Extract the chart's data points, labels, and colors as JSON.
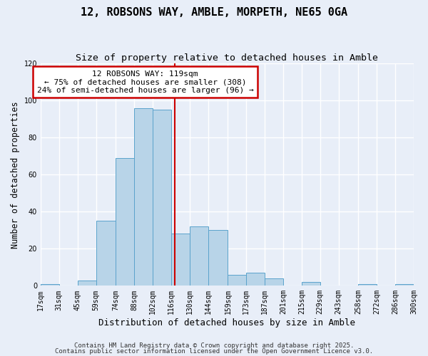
{
  "title": "12, ROBSONS WAY, AMBLE, MORPETH, NE65 0GA",
  "subtitle": "Size of property relative to detached houses in Amble",
  "xlabel": "Distribution of detached houses by size in Amble",
  "ylabel": "Number of detached properties",
  "bin_edges": [
    17,
    31,
    45,
    59,
    74,
    88,
    102,
    116,
    130,
    144,
    159,
    173,
    187,
    201,
    215,
    229,
    243,
    258,
    272,
    286,
    300
  ],
  "bin_counts": [
    1,
    0,
    3,
    35,
    69,
    96,
    95,
    28,
    32,
    30,
    6,
    7,
    4,
    0,
    2,
    0,
    0,
    1,
    0,
    1
  ],
  "bar_color": "#b8d4e8",
  "bar_edge_color": "#5ba3cc",
  "property_line_x": 119,
  "annotation_title": "12 ROBSONS WAY: 119sqm",
  "annotation_line1": "← 75% of detached houses are smaller (308)",
  "annotation_line2": "24% of semi-detached houses are larger (96) →",
  "annotation_box_color": "#ffffff",
  "annotation_border_color": "#cc0000",
  "vline_color": "#cc0000",
  "ylim": [
    0,
    120
  ],
  "yticks": [
    0,
    20,
    40,
    60,
    80,
    100,
    120
  ],
  "tick_labels": [
    "17sqm",
    "31sqm",
    "45sqm",
    "59sqm",
    "74sqm",
    "88sqm",
    "102sqm",
    "116sqm",
    "130sqm",
    "144sqm",
    "159sqm",
    "173sqm",
    "187sqm",
    "201sqm",
    "215sqm",
    "229sqm",
    "243sqm",
    "258sqm",
    "272sqm",
    "286sqm",
    "300sqm"
  ],
  "footnote1": "Contains HM Land Registry data © Crown copyright and database right 2025.",
  "footnote2": "Contains public sector information licensed under the Open Government Licence v3.0.",
  "background_color": "#e8eef8",
  "grid_color": "#ffffff",
  "title_fontsize": 11,
  "subtitle_fontsize": 9.5,
  "xlabel_fontsize": 9,
  "ylabel_fontsize": 8.5,
  "tick_fontsize": 7,
  "annotation_fontsize": 8,
  "footnote_fontsize": 6.5
}
